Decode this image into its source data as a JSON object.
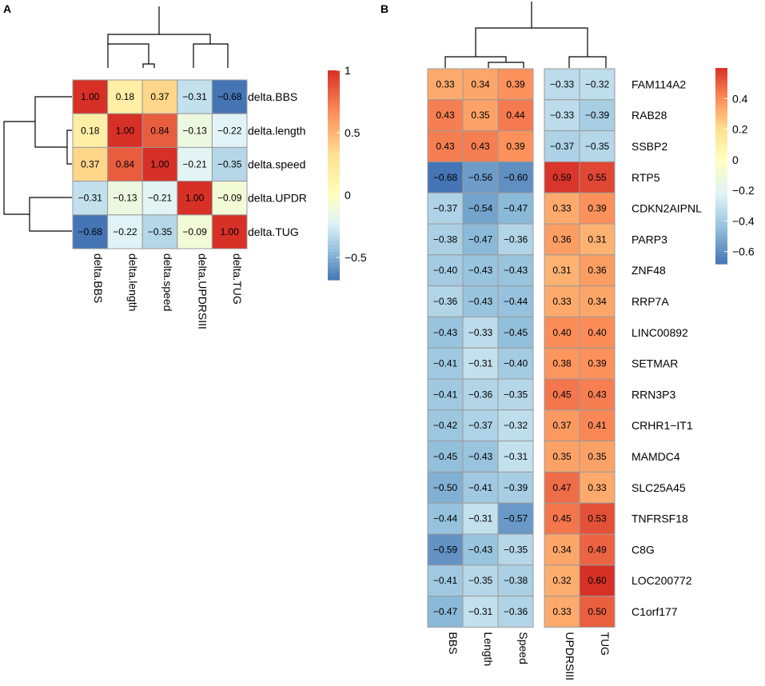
{
  "chart_data": [
    {
      "type": "heatmap",
      "panel_label": "A",
      "rows": [
        "delta.BBS",
        "delta.length",
        "delta.speed",
        "delta.UPDR",
        "delta.TUG"
      ],
      "columns": [
        "delta.BBS",
        "delta.length",
        "delta.speed",
        "delta.UPDRSIII",
        "delta.TUG"
      ],
      "values": [
        [
          1.0,
          0.18,
          0.37,
          -0.31,
          -0.68
        ],
        [
          0.18,
          1.0,
          0.84,
          -0.13,
          -0.22
        ],
        [
          0.37,
          0.84,
          1.0,
          -0.21,
          -0.35
        ],
        [
          -0.31,
          -0.13,
          -0.21,
          1.0,
          -0.09
        ],
        [
          -0.68,
          -0.22,
          -0.35,
          -0.09,
          1.0
        ]
      ],
      "value_labels": [
        [
          "1.00",
          "0.18",
          "0.37",
          "−0.31",
          "−0.68"
        ],
        [
          "0.18",
          "1.00",
          "0.84",
          "−0.13",
          "−0.22"
        ],
        [
          "0.37",
          "0.84",
          "1.00",
          "−0.21",
          "−0.35"
        ],
        [
          "−0.31",
          "−0.13",
          "−0.21",
          "1.00",
          "−0.09"
        ],
        [
          "−0.68",
          "−0.22",
          "−0.35",
          "−0.09",
          "1.00"
        ]
      ],
      "color_range": [
        -0.68,
        1.0
      ],
      "legend_ticks": [
        1,
        0.5,
        0,
        -0.5
      ],
      "legend_tick_labels": [
        "1",
        "0.5",
        "0",
        "−0.5"
      ],
      "row_dendrogram": "((delta.BBS,(delta.length,delta.speed)),(delta.UPDR,delta.TUG))",
      "column_dendrogram": "((delta.BBS,(delta.length,delta.speed)),(delta.UPDRSIII,delta.TUG))"
    },
    {
      "type": "heatmap",
      "panel_label": "B",
      "rows": [
        "FAM114A2",
        "RAB28",
        "SSBP2",
        "RTP5",
        "CDKN2AIPNL",
        "PARP3",
        "ZNF48",
        "RRP7A",
        "LINC00892",
        "SETMAR",
        "RRN3P3",
        "CRHR1−IT1",
        "MAMDC4",
        "SLC25A45",
        "TNFRSF18",
        "C8G",
        "LOC200772",
        "C1orf177"
      ],
      "columns": [
        "BBS",
        "Length",
        "Speed",
        "UPDRSIII",
        "TUG"
      ],
      "column_split_after": 3,
      "values": [
        [
          0.33,
          0.34,
          0.39,
          -0.33,
          -0.32
        ],
        [
          0.43,
          0.35,
          0.44,
          -0.33,
          -0.39
        ],
        [
          0.43,
          0.43,
          0.39,
          -0.37,
          -0.35
        ],
        [
          -0.68,
          -0.56,
          -0.6,
          0.59,
          0.55
        ],
        [
          -0.37,
          -0.54,
          -0.47,
          0.33,
          0.39
        ],
        [
          -0.38,
          -0.47,
          -0.36,
          0.36,
          0.31
        ],
        [
          -0.4,
          -0.43,
          -0.43,
          0.31,
          0.36
        ],
        [
          -0.36,
          -0.43,
          -0.44,
          0.33,
          0.34
        ],
        [
          -0.43,
          -0.33,
          -0.45,
          0.4,
          0.4
        ],
        [
          -0.41,
          -0.31,
          -0.4,
          0.38,
          0.39
        ],
        [
          -0.41,
          -0.36,
          -0.35,
          0.45,
          0.43
        ],
        [
          -0.42,
          -0.37,
          -0.32,
          0.37,
          0.41
        ],
        [
          -0.45,
          -0.43,
          -0.31,
          0.35,
          0.35
        ],
        [
          -0.5,
          -0.41,
          -0.39,
          0.47,
          0.33
        ],
        [
          -0.44,
          -0.31,
          -0.57,
          0.45,
          0.53
        ],
        [
          -0.59,
          -0.43,
          -0.35,
          0.34,
          0.49
        ],
        [
          -0.41,
          -0.35,
          -0.38,
          0.32,
          0.6
        ],
        [
          -0.47,
          -0.31,
          -0.36,
          0.33,
          0.5
        ]
      ],
      "value_labels": [
        [
          "0.33",
          "0.34",
          "0.39",
          "−0.33",
          "−0.32"
        ],
        [
          "0.43",
          "0.35",
          "0.44",
          "−0.33",
          "−0.39"
        ],
        [
          "0.43",
          "0.43",
          "0.39",
          "−0.37",
          "−0.35"
        ],
        [
          "−0.68",
          "−0.56",
          "−0.60",
          "0.59",
          "0.55"
        ],
        [
          "−0.37",
          "−0.54",
          "−0.47",
          "0.33",
          "0.39"
        ],
        [
          "−0.38",
          "−0.47",
          "−0.36",
          "0.36",
          "0.31"
        ],
        [
          "−0.40",
          "−0.43",
          "−0.43",
          "0.31",
          "0.36"
        ],
        [
          "−0.36",
          "−0.43",
          "−0.44",
          "0.33",
          "0.34"
        ],
        [
          "−0.43",
          "−0.33",
          "−0.45",
          "0.40",
          "0.40"
        ],
        [
          "−0.41",
          "−0.31",
          "−0.40",
          "0.38",
          "0.39"
        ],
        [
          "−0.41",
          "−0.36",
          "−0.35",
          "0.45",
          "0.43"
        ],
        [
          "−0.42",
          "−0.37",
          "−0.32",
          "0.37",
          "0.41"
        ],
        [
          "−0.45",
          "−0.43",
          "−0.31",
          "0.35",
          "0.35"
        ],
        [
          "−0.50",
          "−0.41",
          "−0.39",
          "0.47",
          "0.33"
        ],
        [
          "−0.44",
          "−0.31",
          "−0.57",
          "0.45",
          "0.53"
        ],
        [
          "−0.59",
          "−0.43",
          "−0.35",
          "0.34",
          "0.49"
        ],
        [
          "−0.41",
          "−0.35",
          "−0.38",
          "0.32",
          "0.60"
        ],
        [
          "−0.47",
          "−0.31",
          "−0.36",
          "0.33",
          "0.50"
        ]
      ],
      "color_range": [
        -0.68,
        0.6
      ],
      "legend_ticks": [
        0.4,
        0.2,
        0,
        -0.2,
        -0.4,
        -0.6
      ],
      "legend_tick_labels": [
        "0.4",
        "0.2",
        "0",
        "−0.2",
        "−0.4",
        "−0.6"
      ],
      "column_dendrogram": "((BBS,(Length,Speed)),(UPDRSIII,TUG))"
    }
  ]
}
